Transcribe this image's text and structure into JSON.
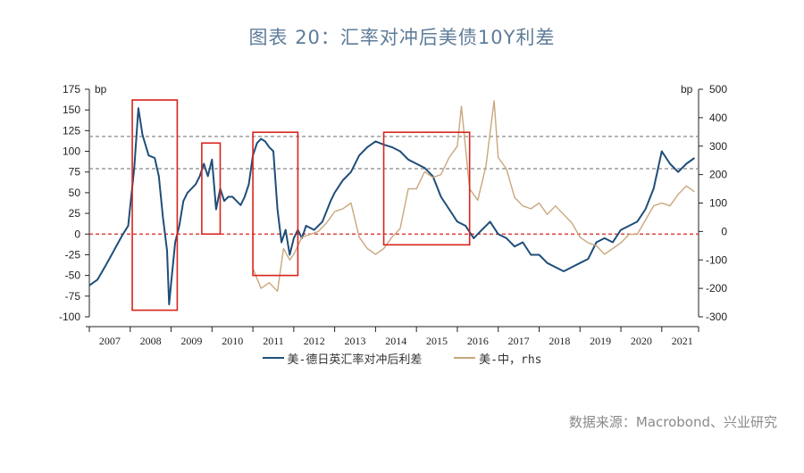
{
  "title": "图表 20：汇率对冲后美债10Y利差",
  "source": "数据来源：Macrobond、兴业研究",
  "chart_data": {
    "type": "line",
    "x_range": [
      2007,
      2021.9
    ],
    "x_ticks": [
      "2007",
      "2008",
      "2009",
      "2010",
      "2011",
      "2012",
      "2013",
      "2014",
      "2015",
      "2016",
      "2017",
      "2018",
      "2019",
      "2020",
      "2021"
    ],
    "y_left": {
      "unit": "bp",
      "range": [
        -100,
        175
      ],
      "ticks": [
        -100,
        -75,
        -50,
        -25,
        0,
        25,
        50,
        75,
        100,
        125,
        150,
        175
      ]
    },
    "y_right": {
      "unit": "bp",
      "range": [
        -300,
        500
      ],
      "ticks": [
        -300,
        -200,
        -100,
        0,
        100,
        200,
        300,
        400,
        500
      ]
    },
    "reference_lines": [
      {
        "axis": "left",
        "value": 118,
        "style": "dashed",
        "color": "#888888"
      },
      {
        "axis": "left",
        "value": 79,
        "style": "dashed",
        "color": "#888888"
      },
      {
        "axis": "left",
        "value": 0,
        "style": "dashed",
        "color": "#d9231c"
      }
    ],
    "highlight_boxes": [
      {
        "x0": 2008.05,
        "x1": 2009.15,
        "y0": -92,
        "y1": 162
      },
      {
        "x0": 2009.75,
        "x1": 2010.2,
        "y0": 0,
        "y1": 110
      },
      {
        "x0": 2011.0,
        "x1": 2012.1,
        "y0": -50,
        "y1": 123
      },
      {
        "x0": 2014.2,
        "x1": 2016.3,
        "y0": -13,
        "y1": 123
      }
    ],
    "series": [
      {
        "name": "美-德日英汇率对冲后利差",
        "axis": "left",
        "color": "#1f4e79",
        "points": [
          [
            2007.0,
            -62
          ],
          [
            2007.2,
            -55
          ],
          [
            2007.4,
            -38
          ],
          [
            2007.6,
            -20
          ],
          [
            2007.8,
            -2
          ],
          [
            2007.95,
            10
          ],
          [
            2008.1,
            80
          ],
          [
            2008.2,
            152
          ],
          [
            2008.3,
            120
          ],
          [
            2008.45,
            95
          ],
          [
            2008.6,
            92
          ],
          [
            2008.7,
            70
          ],
          [
            2008.8,
            20
          ],
          [
            2008.9,
            -20
          ],
          [
            2008.95,
            -85
          ],
          [
            2009.0,
            -60
          ],
          [
            2009.1,
            -10
          ],
          [
            2009.2,
            10
          ],
          [
            2009.3,
            40
          ],
          [
            2009.4,
            50
          ],
          [
            2009.5,
            55
          ],
          [
            2009.6,
            60
          ],
          [
            2009.7,
            70
          ],
          [
            2009.8,
            85
          ],
          [
            2009.9,
            70
          ],
          [
            2010.0,
            90
          ],
          [
            2010.1,
            30
          ],
          [
            2010.2,
            55
          ],
          [
            2010.3,
            40
          ],
          [
            2010.4,
            45
          ],
          [
            2010.5,
            45
          ],
          [
            2010.6,
            40
          ],
          [
            2010.7,
            35
          ],
          [
            2010.8,
            45
          ],
          [
            2010.9,
            60
          ],
          [
            2011.0,
            95
          ],
          [
            2011.1,
            110
          ],
          [
            2011.2,
            115
          ],
          [
            2011.3,
            112
          ],
          [
            2011.4,
            105
          ],
          [
            2011.5,
            100
          ],
          [
            2011.6,
            30
          ],
          [
            2011.7,
            -10
          ],
          [
            2011.8,
            5
          ],
          [
            2011.9,
            -25
          ],
          [
            2012.0,
            -5
          ],
          [
            2012.1,
            5
          ],
          [
            2012.2,
            -5
          ],
          [
            2012.3,
            10
          ],
          [
            2012.5,
            5
          ],
          [
            2012.7,
            15
          ],
          [
            2012.9,
            40
          ],
          [
            2013.0,
            50
          ],
          [
            2013.2,
            65
          ],
          [
            2013.4,
            75
          ],
          [
            2013.6,
            95
          ],
          [
            2013.8,
            105
          ],
          [
            2014.0,
            112
          ],
          [
            2014.2,
            108
          ],
          [
            2014.4,
            105
          ],
          [
            2014.6,
            100
          ],
          [
            2014.8,
            90
          ],
          [
            2015.0,
            85
          ],
          [
            2015.2,
            80
          ],
          [
            2015.4,
            70
          ],
          [
            2015.6,
            45
          ],
          [
            2015.8,
            30
          ],
          [
            2016.0,
            15
          ],
          [
            2016.2,
            10
          ],
          [
            2016.4,
            -5
          ],
          [
            2016.6,
            5
          ],
          [
            2016.8,
            15
          ],
          [
            2017.0,
            0
          ],
          [
            2017.2,
            -5
          ],
          [
            2017.4,
            -15
          ],
          [
            2017.6,
            -10
          ],
          [
            2017.8,
            -25
          ],
          [
            2018.0,
            -25
          ],
          [
            2018.2,
            -35
          ],
          [
            2018.4,
            -40
          ],
          [
            2018.6,
            -45
          ],
          [
            2018.8,
            -40
          ],
          [
            2019.0,
            -35
          ],
          [
            2019.2,
            -30
          ],
          [
            2019.4,
            -10
          ],
          [
            2019.6,
            -5
          ],
          [
            2019.8,
            -10
          ],
          [
            2020.0,
            5
          ],
          [
            2020.2,
            10
          ],
          [
            2020.4,
            15
          ],
          [
            2020.6,
            30
          ],
          [
            2020.8,
            55
          ],
          [
            2021.0,
            100
          ],
          [
            2021.2,
            85
          ],
          [
            2021.4,
            75
          ],
          [
            2021.6,
            85
          ],
          [
            2021.8,
            92
          ]
        ]
      },
      {
        "name": "美-中，rhs",
        "axis": "right",
        "color": "#c9a77c",
        "points": [
          [
            2011.0,
            -130
          ],
          [
            2011.2,
            -200
          ],
          [
            2011.4,
            -180
          ],
          [
            2011.6,
            -210
          ],
          [
            2011.75,
            -60
          ],
          [
            2011.9,
            -100
          ],
          [
            2012.0,
            -80
          ],
          [
            2012.2,
            -20
          ],
          [
            2012.4,
            -10
          ],
          [
            2012.6,
            0
          ],
          [
            2012.8,
            30
          ],
          [
            2013.0,
            70
          ],
          [
            2013.2,
            80
          ],
          [
            2013.4,
            100
          ],
          [
            2013.6,
            -20
          ],
          [
            2013.8,
            -60
          ],
          [
            2014.0,
            -80
          ],
          [
            2014.2,
            -60
          ],
          [
            2014.4,
            -20
          ],
          [
            2014.6,
            10
          ],
          [
            2014.8,
            150
          ],
          [
            2015.0,
            150
          ],
          [
            2015.2,
            210
          ],
          [
            2015.4,
            190
          ],
          [
            2015.6,
            200
          ],
          [
            2015.8,
            260
          ],
          [
            2016.0,
            300
          ],
          [
            2016.1,
            440
          ],
          [
            2016.3,
            150
          ],
          [
            2016.5,
            110
          ],
          [
            2016.7,
            230
          ],
          [
            2016.9,
            460
          ],
          [
            2017.0,
            260
          ],
          [
            2017.2,
            220
          ],
          [
            2017.4,
            120
          ],
          [
            2017.6,
            90
          ],
          [
            2017.8,
            80
          ],
          [
            2018.0,
            100
          ],
          [
            2018.2,
            60
          ],
          [
            2018.4,
            90
          ],
          [
            2018.6,
            60
          ],
          [
            2018.8,
            30
          ],
          [
            2019.0,
            -20
          ],
          [
            2019.2,
            -40
          ],
          [
            2019.4,
            -50
          ],
          [
            2019.6,
            -80
          ],
          [
            2019.8,
            -60
          ],
          [
            2020.0,
            -40
          ],
          [
            2020.2,
            -10
          ],
          [
            2020.4,
            -10
          ],
          [
            2020.6,
            40
          ],
          [
            2020.8,
            90
          ],
          [
            2021.0,
            100
          ],
          [
            2021.2,
            90
          ],
          [
            2021.4,
            130
          ],
          [
            2021.6,
            160
          ],
          [
            2021.8,
            140
          ]
        ]
      }
    ]
  }
}
